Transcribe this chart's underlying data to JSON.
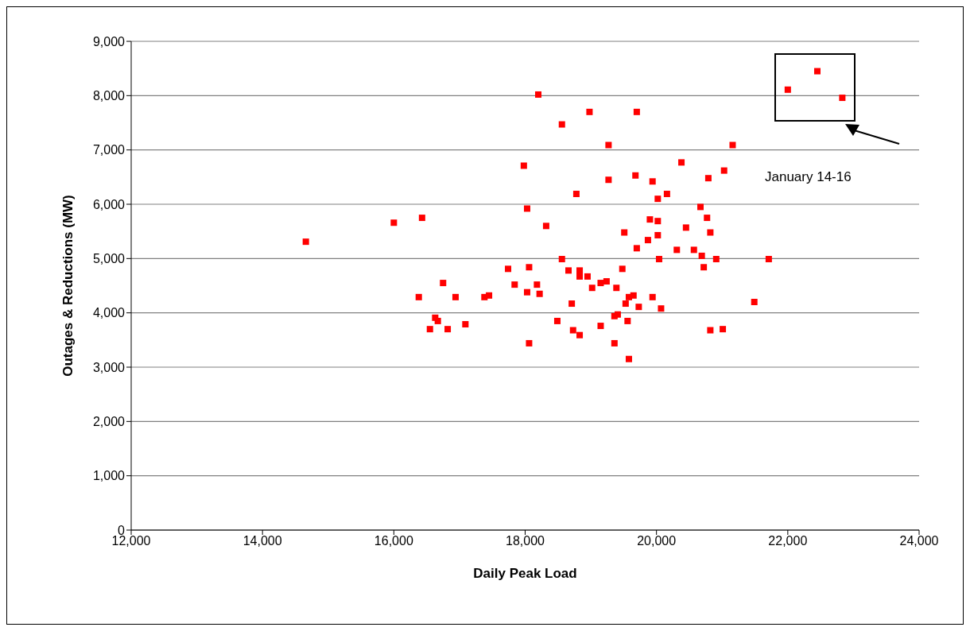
{
  "chart_data": {
    "type": "scatter",
    "xlabel": "Daily Peak Load",
    "ylabel": "Outages & Reductions (MW)",
    "annotations": [
      "January 14-16"
    ],
    "x": [
      14660,
      16000,
      16430,
      18200,
      18980,
      18560,
      19270,
      17980,
      19270,
      18780,
      18030,
      18320,
      18560,
      17740,
      18060,
      18660,
      18830,
      18830,
      18950,
      19150,
      19240,
      19020,
      19390,
      16750,
      17840,
      18180,
      18030,
      18220,
      16380,
      16940,
      17380,
      17450,
      18710,
      16630,
      16670,
      16550,
      16820,
      17090,
      18490,
      18730,
      18830,
      19150,
      18060,
      19360,
      19360,
      19410,
      22000,
      22830,
      22450,
      19700,
      21160,
      20380,
      19680,
      19940,
      21030,
      20790,
      20160,
      20020,
      20670,
      19900,
      20020,
      20770,
      20450,
      19510,
      20820,
      20020,
      19870,
      19700,
      20310,
      20570,
      20690,
      20040,
      20910,
      21710,
      20720,
      19480,
      19940,
      19580,
      19650,
      19530,
      19730,
      20070,
      21490,
      19560,
      20820,
      21010,
      19580
    ],
    "values": [
      5310,
      5660,
      5750,
      8020,
      7700,
      7470,
      7090,
      6710,
      6450,
      6190,
      5920,
      5600,
      4990,
      4810,
      4840,
      4780,
      4780,
      4670,
      4670,
      4550,
      4580,
      4460,
      4460,
      4550,
      4520,
      4520,
      4380,
      4350,
      4290,
      4290,
      4290,
      4320,
      4170,
      3910,
      3850,
      3700,
      3700,
      3790,
      3850,
      3680,
      3590,
      3760,
      3440,
      3440,
      3940,
      3970,
      8110,
      7960,
      8450,
      7700,
      7090,
      6770,
      6530,
      6420,
      6620,
      6480,
      6190,
      6100,
      5950,
      5720,
      5690,
      5750,
      5570,
      5480,
      5480,
      5430,
      5340,
      5190,
      5160,
      5160,
      5050,
      4990,
      4990,
      4990,
      4840,
      4810,
      4290,
      4290,
      4320,
      4170,
      4110,
      4080,
      4200,
      3850,
      3680,
      3700,
      3150
    ],
    "color": "#ff0000",
    "marker": "square",
    "xlim": [
      12000,
      24000
    ],
    "xticks": [
      {
        "value": 12000,
        "label": "12,000"
      },
      {
        "value": 14000,
        "label": "14,000"
      },
      {
        "value": 16000,
        "label": "16,000"
      },
      {
        "value": 18000,
        "label": "18,000"
      },
      {
        "value": 20000,
        "label": "20,000"
      },
      {
        "value": 22000,
        "label": "22,000"
      },
      {
        "value": 24000,
        "label": "24,000"
      }
    ],
    "ylim": [
      0,
      9000
    ],
    "yticks": [
      0,
      {
        "value": 1000,
        "label": "1,000"
      },
      {
        "value": 2000,
        "label": "2,000"
      },
      {
        "value": 3000,
        "label": "3,000"
      },
      {
        "value": 4000,
        "label": "4,000"
      },
      {
        "value": 5000,
        "label": "5,000"
      },
      {
        "value": 6000,
        "label": "6,000"
      },
      {
        "value": 7000,
        "label": "7,000"
      },
      {
        "value": 8000,
        "label": "8,000"
      },
      {
        "value": 9000,
        "label": "9,000"
      }
    ],
    "grid": "y",
    "legend": false
  }
}
